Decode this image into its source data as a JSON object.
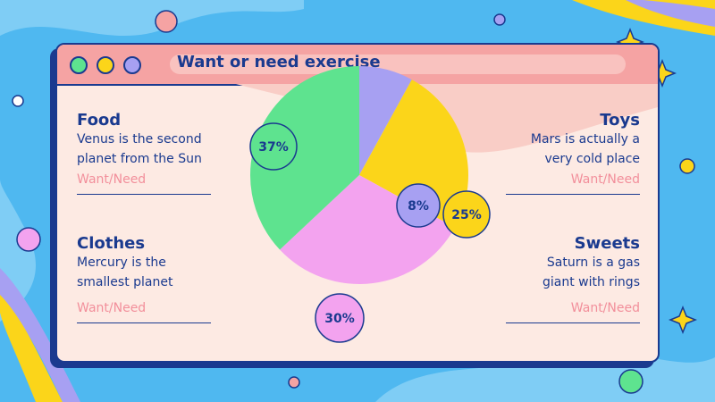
{
  "title": "Want or need exercise",
  "items": [
    {
      "name": "Food",
      "desc": "Venus is the second planet from the Sun",
      "tag": "Want/Need"
    },
    {
      "name": "Clothes",
      "desc": "Mercury is the smallest planet",
      "tag": "Want/Need"
    },
    {
      "name": "Toys",
      "desc": "Mars is actually a very cold place",
      "tag": "Want/Need"
    },
    {
      "name": "Sweets",
      "desc": "Saturn is a gas giant with rings",
      "tag": "Want/Need"
    }
  ],
  "chart_data": {
    "type": "pie",
    "title": "Want or need exercise",
    "slices": [
      {
        "label": "8%",
        "value": 8,
        "color": "#a7a0f2"
      },
      {
        "label": "25%",
        "value": 25,
        "color": "#fbd51a"
      },
      {
        "label": "30%",
        "value": 30,
        "color": "#f3a3ef"
      },
      {
        "label": "37%",
        "value": 37,
        "color": "#5ee38f"
      }
    ]
  },
  "colors": {
    "accent": "#1a3a8f",
    "background": "#4fb8f0",
    "titlebar": "#f5a3a3",
    "panel": "#fdeae3",
    "tag": "#f28f9b"
  }
}
